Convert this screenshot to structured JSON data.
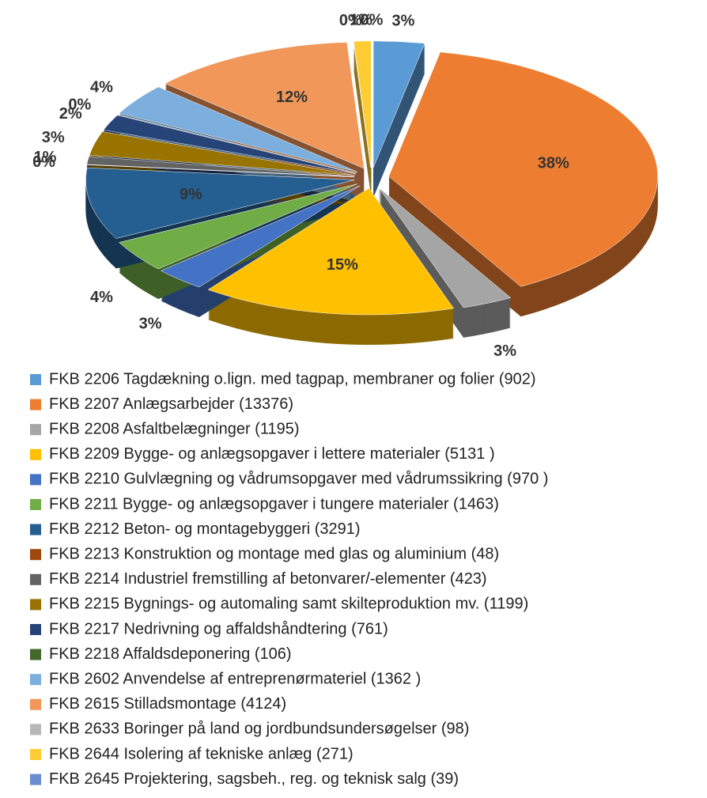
{
  "chart_data": {
    "type": "pie",
    "categories": [
      "FKB 2206 Tagdækning o.lign. med tagpap, membraner og folier (902)",
      "FKB 2207 Anlægsarbejder (13376)",
      "FKB 2208 Asfaltbelægninger (1195)",
      "FKB 2209 Bygge- og anlægsopgaver i lettere materialer (5131 )",
      "FKB 2210 Gulvlægning og vådrumsopgaver med vådrumssikring (970 )",
      "FKB 2211 Bygge- og anlægsopgaver i tungere materialer (1463)",
      "FKB 2212 Beton- og montagebyggeri (3291)",
      "FKB 2213 Konstruktion og montage med glas og aluminium (48)",
      "FKB 2214 Industriel fremstilling af betonvarer/-elementer (423)",
      "FKB 2215 Bygnings- og automaling samt skilteproduktion mv. (1199)",
      "FKB 2217 Nedrivning og affaldshåndtering (761)",
      "FKB 2218 Affaldsdeponering (106)",
      "FKB 2602 Anvendelse af entreprenørmateriel (1362 )",
      "FKB 2615 Stilladsmontage (4124)",
      "FKB 2633 Boringer på land og jordbundsundersøgelser (98)",
      "FKB 2644 Isolering af tekniske anlæg (271)",
      "FKB 2645 Projektering, sagsbeh., reg. og teknisk salg (39)"
    ],
    "values": [
      3,
      38,
      3,
      15,
      3,
      4,
      9,
      0,
      1,
      3,
      2,
      0,
      4,
      12,
      0,
      1,
      0
    ],
    "value_labels": [
      "3%",
      "38%",
      "3%",
      "15%",
      "3%",
      "4%",
      "9%",
      "0%",
      "1%",
      "3%",
      "2%",
      "0%",
      "4%",
      "12%",
      "0%",
      "1%",
      "0%"
    ],
    "colors": [
      "#5b9bd5",
      "#ed7d31",
      "#a5a5a5",
      "#ffc000",
      "#4472c4",
      "#70ad47",
      "#255e91",
      "#9e480e",
      "#636363",
      "#997300",
      "#264478",
      "#43682b",
      "#7cafdd",
      "#f1975a",
      "#b7b7b7",
      "#ffcd33",
      "#698ed0"
    ],
    "legend": "bottom"
  }
}
